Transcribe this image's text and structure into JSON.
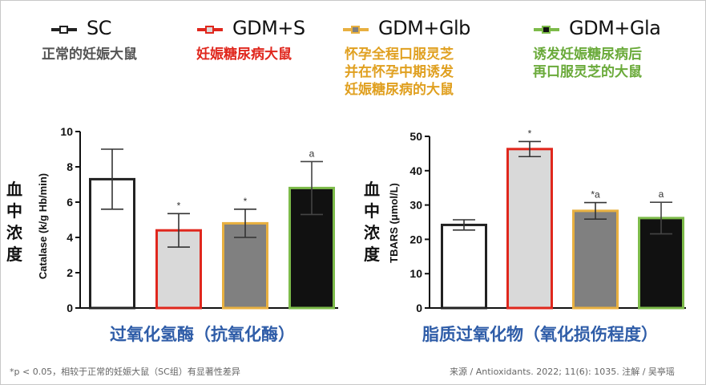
{
  "legend": [
    {
      "name": "SC",
      "desc": "正常的妊娠大鼠",
      "color": "#555555",
      "fill": "#ffffff",
      "line": "#222222"
    },
    {
      "name": "GDM+S",
      "desc": "妊娠糖尿病大鼠",
      "color": "#e0271d",
      "fill": "#d9d9d9",
      "line": "#e0271d"
    },
    {
      "name": "GDM+Glb",
      "desc": "怀孕全程口服灵芝\n并在怀孕中期诱发\n妊娠糖尿病的大鼠",
      "color": "#e0a020",
      "fill": "#808080",
      "line": "#e8b040"
    },
    {
      "name": "GDM+Gla",
      "desc": "诱发妊娠糖尿病后\n再口服灵芝的大鼠",
      "color": "#6aaa3a",
      "fill": "#111111",
      "line": "#7dbb4a"
    }
  ],
  "side_label_1": "血\n中\n浓\n度",
  "side_label_2": "血\n中\n浓\n度",
  "caption_1": "过氧化氢酶（抗氧化酶）",
  "caption_2": "脂质过氧化物（氧化损伤程度）",
  "footnote_left": "*p < 0.05，相较于正常的妊娠大鼠（SC组）有显著性差异",
  "footnote_right": "来源 / Antioxidants. 2022; 11(6): 1035.   注解 / 吴亭瑶",
  "chart_data": [
    {
      "type": "bar",
      "ylabel": "Catalase (k/g Hb/min)",
      "ylim": [
        0,
        10
      ],
      "yticks": [
        0,
        2,
        4,
        6,
        8,
        10
      ],
      "categories": [
        "SC",
        "GDM+S",
        "GDM+Glb",
        "GDM+Gla"
      ],
      "values": [
        7.3,
        4.4,
        4.8,
        6.8
      ],
      "errors": [
        1.7,
        0.95,
        0.8,
        1.5
      ],
      "annotations": [
        "",
        "*",
        "*",
        "a"
      ],
      "grid": false
    },
    {
      "type": "bar",
      "ylabel": "TBARS (μmol/L)",
      "ylim": [
        0,
        50
      ],
      "yticks": [
        0,
        10,
        20,
        30,
        40,
        50
      ],
      "categories": [
        "SC",
        "GDM+S",
        "GDM+Glb",
        "GDM+Gla"
      ],
      "values": [
        24.2,
        46.3,
        28.3,
        26.2
      ],
      "errors": [
        1.5,
        2.2,
        2.4,
        4.6
      ],
      "annotations": [
        "",
        "*",
        "*a",
        "a"
      ],
      "grid": false
    }
  ]
}
